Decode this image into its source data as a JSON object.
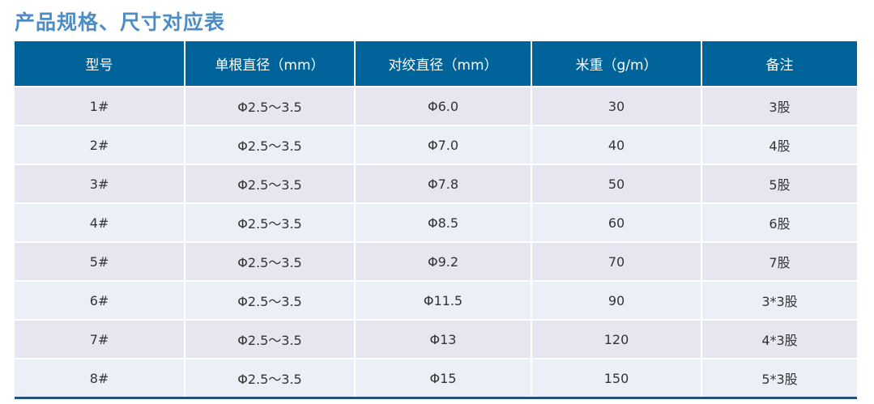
{
  "title": "产品规格、尺寸对应表",
  "colors": {
    "header_bg": "#00649a",
    "title": "#4d8cc4",
    "row_odd": "#e6e5f0",
    "row_even": "#ebeff7",
    "bottom_border": "#1f5283"
  },
  "columns": [
    "型号",
    "单根直径（mm）",
    "对绞直径（mm）",
    "米重（g/m）",
    "备注"
  ],
  "rows": [
    [
      "1#",
      "Φ2.5～3.5",
      "Φ6.0",
      "30",
      "3股"
    ],
    [
      "2#",
      "Φ2.5～3.5",
      "Φ7.0",
      "40",
      "4股"
    ],
    [
      "3#",
      "Φ2.5～3.5",
      "Φ7.8",
      "50",
      "5股"
    ],
    [
      "4#",
      "Φ2.5～3.5",
      "Φ8.5",
      "60",
      "6股"
    ],
    [
      "5#",
      "Φ2.5～3.5",
      "Φ9.2",
      "70",
      "7股"
    ],
    [
      "6#",
      "Φ2.5～3.5",
      "Φ11.5",
      "90",
      "3*3股"
    ],
    [
      "7#",
      "Φ2.5～3.5",
      "Φ13",
      "120",
      "4*3股"
    ],
    [
      "8#",
      "Φ2.5～3.5",
      "Φ15",
      "150",
      "5*3股"
    ]
  ]
}
